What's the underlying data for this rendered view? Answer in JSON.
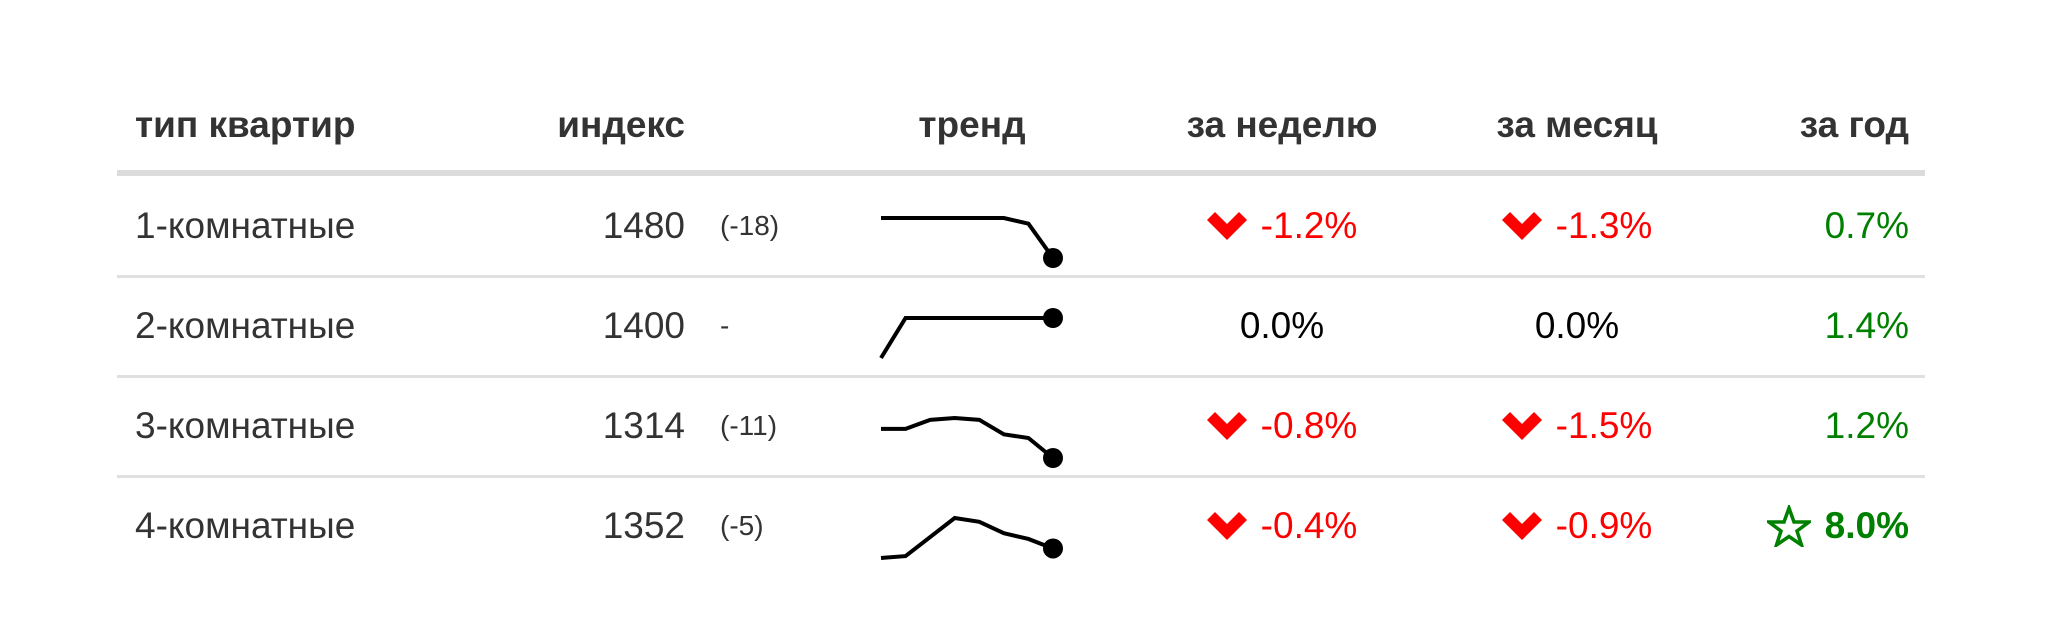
{
  "header": {
    "type": "тип квартир",
    "index": "индекс",
    "trend": "тренд",
    "week": "за неделю",
    "month": "за месяц",
    "year": "за год"
  },
  "colors": {
    "negative": "#ff0000",
    "neutral": "#000000",
    "positive": "#008000",
    "trend_line": "#000000"
  },
  "rows": [
    {
      "type": "1-комнатные",
      "index": "1480",
      "delta": "(-18)",
      "trend": [
        1501,
        1501,
        1501,
        1501,
        1501,
        1501,
        1498,
        1480
      ],
      "week": {
        "value": "-1.2%",
        "status": "negative",
        "icon": "chevron-down-icon"
      },
      "month": {
        "value": "-1.3%",
        "status": "negative",
        "icon": "chevron-down-icon"
      },
      "year": {
        "value": "0.7%",
        "status": "positive",
        "icon": ""
      }
    },
    {
      "type": "2-комнатные",
      "index": "1400",
      "delta": "-",
      "trend": [
        1385,
        1400,
        1400,
        1400,
        1400,
        1400,
        1400,
        1400
      ],
      "week": {
        "value": "0.0%",
        "status": "neutral",
        "icon": ""
      },
      "month": {
        "value": "0.0%",
        "status": "neutral",
        "icon": ""
      },
      "year": {
        "value": "1.4%",
        "status": "positive",
        "icon": ""
      }
    },
    {
      "type": "3-комнатные",
      "index": "1314",
      "delta": "(-11)",
      "trend": [
        1330,
        1330,
        1335,
        1336,
        1335,
        1327,
        1325,
        1314
      ],
      "week": {
        "value": "-0.8%",
        "status": "negative",
        "icon": "chevron-down-icon"
      },
      "month": {
        "value": "-1.5%",
        "status": "negative",
        "icon": "chevron-down-icon"
      },
      "year": {
        "value": "1.2%",
        "status": "positive",
        "icon": ""
      }
    },
    {
      "type": "4-комнатные",
      "index": "1352",
      "delta": "(-5)",
      "trend": [
        1347,
        1348,
        1358,
        1368,
        1366,
        1360,
        1357,
        1352
      ],
      "week": {
        "value": "-0.4%",
        "status": "negative",
        "icon": "chevron-down-icon"
      },
      "month": {
        "value": "-0.9%",
        "status": "negative",
        "icon": "chevron-down-icon"
      },
      "year": {
        "value": "8.0%",
        "status": "positive",
        "icon": "star-icon",
        "highlight": true
      }
    }
  ]
}
